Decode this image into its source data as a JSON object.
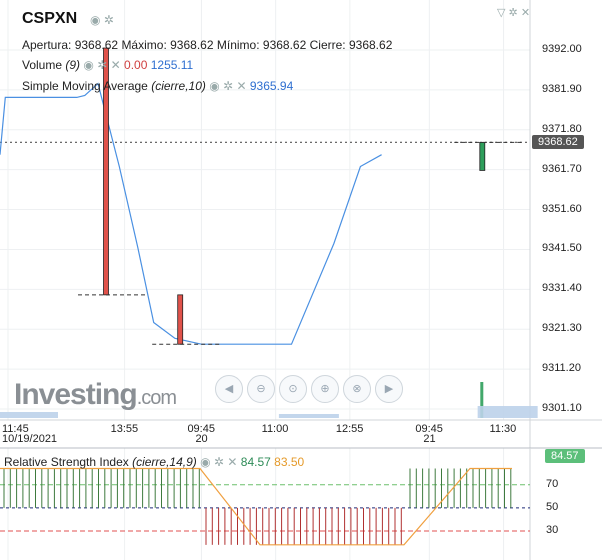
{
  "symbol": "CSPXN",
  "ohlc": {
    "open_label": "Apertura:",
    "open": "9368.62",
    "high_label": "Máximo:",
    "high": "9368.62",
    "low_label": "Mínimo:",
    "low": "9368.62",
    "close_label": "Cierre:",
    "close": "9368.62"
  },
  "volume": {
    "label": "Volume",
    "param": "(9)",
    "value1": "0.00",
    "value2": "1255.11"
  },
  "sma": {
    "label": "Simple Moving Average",
    "param": "(cierre,10)",
    "value": "9365.94"
  },
  "rsi": {
    "label": "Relative Strength Index",
    "param": "(cierre,14,9)",
    "value1": "84.57",
    "value2": "83.50",
    "badge": "84.57"
  },
  "last_price_badge": "9368.62",
  "watermark": {
    "brand": "Investing",
    "suffix": ".com"
  },
  "colors": {
    "up": "#2e9e5b",
    "down": "#e0524a",
    "sma": "#4a90e2",
    "rsi_line": "#f0a040",
    "badge": "#555555",
    "rsi_badge": "#5cbf7a"
  },
  "chart_data": {
    "type": "candlestick",
    "price_axis_ticks": [
      "9392.00",
      "9381.90",
      "9371.80",
      "9361.70",
      "9351.60",
      "9341.50",
      "9331.40",
      "9321.30",
      "9311.20",
      "9301.10"
    ],
    "time_axis": [
      {
        "label": "11:45",
        "sub": "10/19/2021"
      },
      {
        "label": "13:55",
        "sub": ""
      },
      {
        "label": "09:45",
        "sub": "20"
      },
      {
        "label": "11:00",
        "sub": ""
      },
      {
        "label": "12:55",
        "sub": ""
      },
      {
        "label": "09:45",
        "sub": "21"
      },
      {
        "label": "11:30",
        "sub": ""
      }
    ],
    "candles": [
      {
        "x": 0.2,
        "open": 9392.5,
        "high": 9392.5,
        "low": 9330.0,
        "close": 9330.0
      },
      {
        "x": 0.34,
        "open": 9330.0,
        "high": 9330.0,
        "low": 9317.5,
        "close": 9317.5
      },
      {
        "x": 0.91,
        "open": 9361.5,
        "high": 9368.6,
        "low": 9361.5,
        "close": 9368.6
      }
    ],
    "sma_points": [
      [
        0.0,
        9365.5
      ],
      [
        0.01,
        9380.0
      ],
      [
        0.12,
        9380.0
      ],
      [
        0.145,
        9380.0
      ],
      [
        0.16,
        9380.5
      ],
      [
        0.185,
        9383.5
      ],
      [
        0.225,
        9362.5
      ],
      [
        0.26,
        9342.0
      ],
      [
        0.29,
        9323.0
      ],
      [
        0.33,
        9319.0
      ],
      [
        0.38,
        9317.5
      ],
      [
        0.55,
        9317.5
      ],
      [
        0.63,
        9343.0
      ],
      [
        0.68,
        9362.5
      ],
      [
        0.72,
        9365.5
      ]
    ],
    "last_price": 9368.62,
    "rsi_ticks": [
      "70",
      "50",
      "30"
    ],
    "rsi_levels": {
      "upper": 70,
      "middle": 50,
      "lower": 30
    }
  }
}
